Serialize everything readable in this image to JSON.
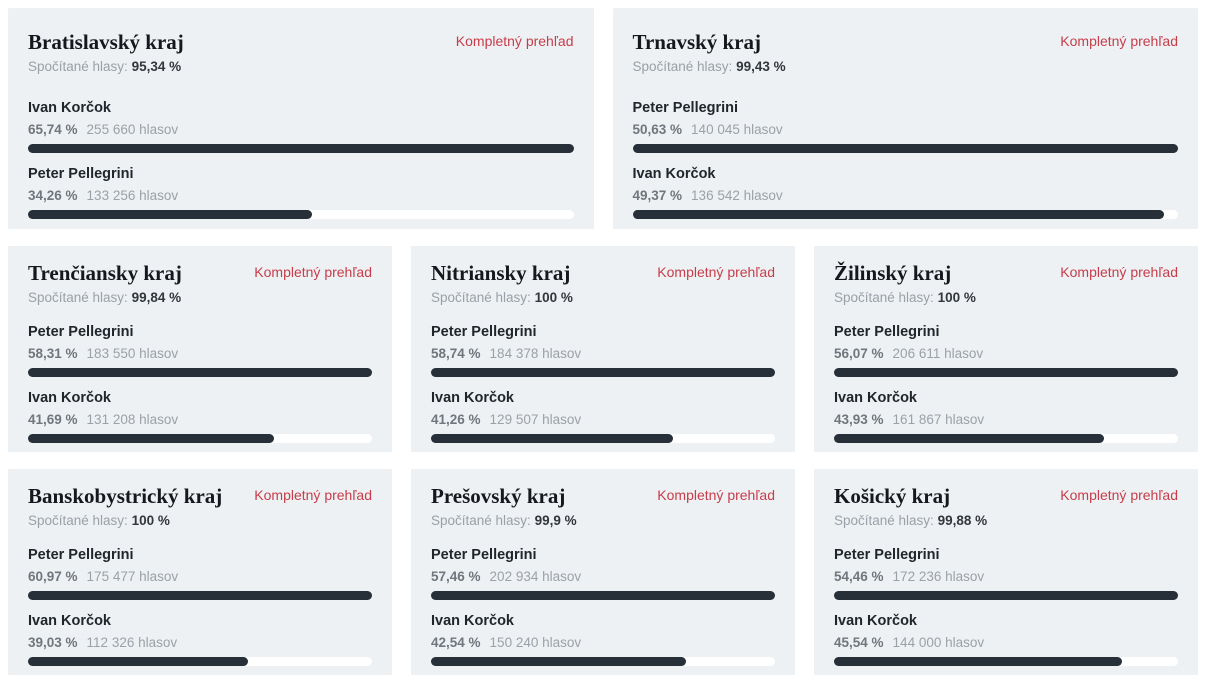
{
  "link_label": "Kompletný prehľad",
  "counted_label": "Spočítané hlasy:",
  "colors": {
    "accent_red": "#c63d4b",
    "card_bg": "#eef1f3",
    "bar_fill": "#272f39",
    "bar_track": "#ffffff"
  },
  "regions": [
    {
      "name": "Bratislavský kraj",
      "counted": "95,34 %",
      "candidates": [
        {
          "name": "Ivan Korčok",
          "pct_label": "65,74 %",
          "pct": 65.74,
          "votes": "255 660 hlasov"
        },
        {
          "name": "Peter Pellegrini",
          "pct_label": "34,26 %",
          "pct": 34.26,
          "votes": "133 256 hlasov"
        }
      ]
    },
    {
      "name": "Trnavský kraj",
      "counted": "99,43 %",
      "candidates": [
        {
          "name": "Peter Pellegrini",
          "pct_label": "50,63 %",
          "pct": 50.63,
          "votes": "140 045 hlasov"
        },
        {
          "name": "Ivan Korčok",
          "pct_label": "49,37 %",
          "pct": 49.37,
          "votes": "136 542 hlasov"
        }
      ]
    },
    {
      "name": "Trenčiansky kraj",
      "counted": "99,84 %",
      "candidates": [
        {
          "name": "Peter Pellegrini",
          "pct_label": "58,31 %",
          "pct": 58.31,
          "votes": "183 550 hlasov"
        },
        {
          "name": "Ivan Korčok",
          "pct_label": "41,69 %",
          "pct": 41.69,
          "votes": "131 208 hlasov"
        }
      ]
    },
    {
      "name": "Nitriansky kraj",
      "counted": "100 %",
      "candidates": [
        {
          "name": "Peter Pellegrini",
          "pct_label": "58,74 %",
          "pct": 58.74,
          "votes": "184 378 hlasov"
        },
        {
          "name": "Ivan Korčok",
          "pct_label": "41,26 %",
          "pct": 41.26,
          "votes": "129 507 hlasov"
        }
      ]
    },
    {
      "name": "Žilinský kraj",
      "counted": "100 %",
      "candidates": [
        {
          "name": "Peter Pellegrini",
          "pct_label": "56,07 %",
          "pct": 56.07,
          "votes": "206 611 hlasov"
        },
        {
          "name": "Ivan Korčok",
          "pct_label": "43,93 %",
          "pct": 43.93,
          "votes": "161 867 hlasov"
        }
      ]
    },
    {
      "name": "Banskobystrický kraj",
      "counted": "100 %",
      "candidates": [
        {
          "name": "Peter Pellegrini",
          "pct_label": "60,97 %",
          "pct": 60.97,
          "votes": "175 477 hlasov"
        },
        {
          "name": "Ivan Korčok",
          "pct_label": "39,03 %",
          "pct": 39.03,
          "votes": "112 326 hlasov"
        }
      ]
    },
    {
      "name": "Prešovský kraj",
      "counted": "99,9 %",
      "candidates": [
        {
          "name": "Peter Pellegrini",
          "pct_label": "57,46 %",
          "pct": 57.46,
          "votes": "202 934 hlasov"
        },
        {
          "name": "Ivan Korčok",
          "pct_label": "42,54 %",
          "pct": 42.54,
          "votes": "150 240 hlasov"
        }
      ]
    },
    {
      "name": "Košický kraj",
      "counted": "99,88 %",
      "candidates": [
        {
          "name": "Peter Pellegrini",
          "pct_label": "54,46 %",
          "pct": 54.46,
          "votes": "172 236 hlasov"
        },
        {
          "name": "Ivan Korčok",
          "pct_label": "45,54 %",
          "pct": 45.54,
          "votes": "144 000 hlasov"
        }
      ]
    }
  ]
}
